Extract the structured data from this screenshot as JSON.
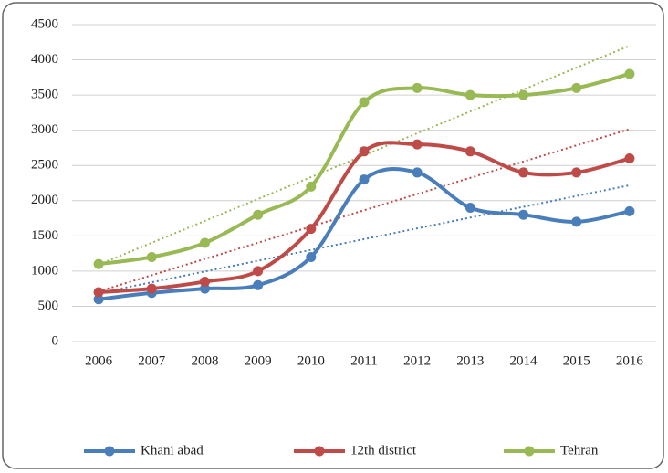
{
  "chart_data": {
    "type": "line",
    "categories": [
      "2006",
      "2007",
      "2008",
      "2009",
      "2010",
      "2011",
      "2012",
      "2013",
      "2014",
      "2015",
      "2016"
    ],
    "series": [
      {
        "name": "Khani abad",
        "color": "#4a7ebb",
        "values": [
          600,
          690,
          750,
          800,
          1200,
          2300,
          2400,
          1900,
          1800,
          1700,
          1850
        ]
      },
      {
        "name": "12th district",
        "color": "#be4b48",
        "values": [
          700,
          750,
          850,
          1000,
          1600,
          2700,
          2800,
          2700,
          2400,
          2400,
          2600
        ]
      },
      {
        "name": "Tehran",
        "color": "#98b954",
        "values": [
          1100,
          1200,
          1400,
          1800,
          2200,
          3400,
          3600,
          3500,
          3500,
          3600,
          3800
        ]
      }
    ],
    "ylim": [
      0,
      4500
    ],
    "yticks": [
      0,
      500,
      1000,
      1500,
      2000,
      2500,
      3000,
      3500,
      4000,
      4500
    ],
    "grid": true,
    "smooth": true,
    "trendline": true,
    "legend": "bottom"
  }
}
